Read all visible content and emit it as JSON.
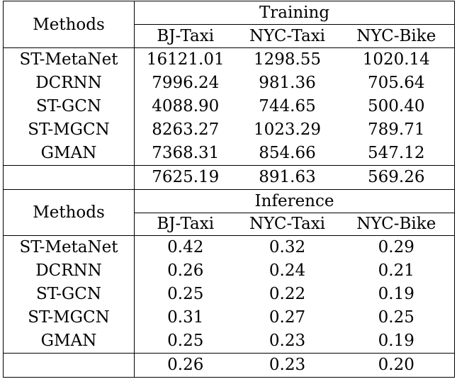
{
  "training": {
    "methods_header": "Methods",
    "section_label": "Training",
    "columns": [
      "BJ-Taxi",
      "NYC-Taxi",
      "NYC-Bike"
    ],
    "rows": [
      {
        "method": "ST-MetaNet",
        "values": [
          "16121.01",
          "1298.55",
          "1020.14"
        ]
      },
      {
        "method": "DCRNN",
        "values": [
          "7996.24",
          "981.36",
          "705.64"
        ]
      },
      {
        "method": "ST-GCN",
        "values": [
          "4088.90",
          "744.65",
          "500.40"
        ]
      },
      {
        "method": "ST-MGCN",
        "values": [
          "8263.27",
          "1023.29",
          "789.71"
        ]
      },
      {
        "method": "GMAN",
        "values": [
          "7368.31",
          "854.66",
          "547.12"
        ]
      }
    ],
    "summary": {
      "method": "",
      "values": [
        "7625.19",
        "891.63",
        "569.26"
      ]
    }
  },
  "inference": {
    "methods_header": "Methods",
    "section_label": "Inference",
    "columns": [
      "BJ-Taxi",
      "NYC-Taxi",
      "NYC-Bike"
    ],
    "rows": [
      {
        "method": "ST-MetaNet",
        "values": [
          "0.42",
          "0.32",
          "0.29"
        ]
      },
      {
        "method": "DCRNN",
        "values": [
          "0.26",
          "0.24",
          "0.21"
        ]
      },
      {
        "method": "ST-GCN",
        "values": [
          "0.25",
          "0.22",
          "0.19"
        ]
      },
      {
        "method": "ST-MGCN",
        "values": [
          "0.31",
          "0.27",
          "0.25"
        ]
      },
      {
        "method": "GMAN",
        "values": [
          "0.25",
          "0.23",
          "0.19"
        ]
      }
    ],
    "summary": {
      "method": "",
      "values": [
        "0.26",
        "0.23",
        "0.20"
      ]
    }
  }
}
